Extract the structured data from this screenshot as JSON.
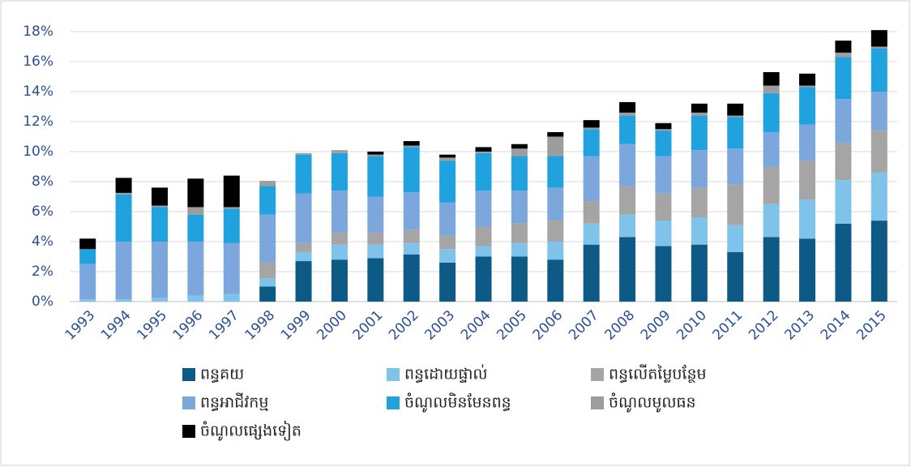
{
  "chart_data": {
    "type": "stacked_bar",
    "categories": [
      "1993",
      "1994",
      "1995",
      "1996",
      "1997",
      "1998",
      "1999",
      "2000",
      "2001",
      "2002",
      "2003",
      "2004",
      "2005",
      "2006",
      "2007",
      "2008",
      "2009",
      "2010",
      "2011",
      "2012",
      "2013",
      "2014",
      "2015"
    ],
    "series": [
      {
        "name": "ពន្ធគយ",
        "color": "#0d5a86",
        "values": [
          0,
          0,
          0,
          0,
          0,
          1.0,
          2.7,
          2.8,
          2.9,
          3.15,
          2.6,
          3.0,
          3.0,
          2.8,
          3.8,
          4.3,
          3.7,
          3.8,
          3.3,
          4.3,
          4.2,
          5.2,
          5.4
        ]
      },
      {
        "name": "ពន្ធដោយផ្ទាល់",
        "color": "#7fc3ea",
        "values": [
          0.15,
          0.15,
          0.25,
          0.4,
          0.5,
          0.55,
          0.6,
          1.0,
          0.9,
          0.75,
          0.9,
          0.7,
          0.9,
          1.2,
          1.4,
          1.5,
          1.7,
          1.8,
          1.8,
          2.2,
          2.6,
          2.9,
          3.2
        ]
      },
      {
        "name": "ពន្ធលើតម្លៃបន្ថែម",
        "color": "#a5a5a5",
        "values": [
          0,
          0,
          0,
          0,
          0,
          1.05,
          0.6,
          0.8,
          0.8,
          0.9,
          0.9,
          1.3,
          1.3,
          1.4,
          1.5,
          1.9,
          1.8,
          2.0,
          2.7,
          2.5,
          2.6,
          2.5,
          2.8
        ]
      },
      {
        "name": "ពន្ធអាជីវកម្ម",
        "color": "#7ba7dd",
        "values": [
          2.35,
          3.85,
          3.75,
          3.6,
          3.4,
          3.2,
          3.3,
          2.8,
          2.4,
          2.5,
          2.2,
          2.4,
          2.2,
          2.2,
          3.0,
          2.8,
          2.5,
          2.5,
          2.4,
          2.3,
          2.4,
          2.9,
          2.6
        ]
      },
      {
        "name": "ចំណូលមិនមែនពន្ធ",
        "color": "#1fa2de",
        "values": [
          1.0,
          3.15,
          2.3,
          1.8,
          2.3,
          1.9,
          2.6,
          2.5,
          2.7,
          3.0,
          2.8,
          2.5,
          2.3,
          2.1,
          1.8,
          1.9,
          1.7,
          2.3,
          2.1,
          2.6,
          2.5,
          2.8,
          2.9
        ]
      },
      {
        "name": "ចំណូលមូលធន",
        "color": "#9d9d9d",
        "values": [
          0,
          0.1,
          0.1,
          0.5,
          0.1,
          0.35,
          0.1,
          0.2,
          0.1,
          0.1,
          0.2,
          0.1,
          0.5,
          1.3,
          0.1,
          0.2,
          0.1,
          0.2,
          0.1,
          0.5,
          0.1,
          0.3,
          0.1
        ]
      },
      {
        "name": "ចំណូលផ្សេងទៀត",
        "color": "#000000",
        "values": [
          0.7,
          1.0,
          1.2,
          1.9,
          2.1,
          0,
          0,
          0,
          0.2,
          0.3,
          0.2,
          0.3,
          0.3,
          0.3,
          0.5,
          0.7,
          0.4,
          0.6,
          0.8,
          0.9,
          0.8,
          0.8,
          1.1
        ]
      }
    ],
    "ylim": [
      0,
      18
    ],
    "yticks": [
      {
        "value": 0,
        "label": "0%"
      },
      {
        "value": 2,
        "label": "2%"
      },
      {
        "value": 4,
        "label": "4%"
      },
      {
        "value": 6,
        "label": "6%"
      },
      {
        "value": 8,
        "label": "8%"
      },
      {
        "value": 10,
        "label": "10%"
      },
      {
        "value": 12,
        "label": "12%"
      },
      {
        "value": 14,
        "label": "14%"
      },
      {
        "value": 16,
        "label": "16%"
      },
      {
        "value": 18,
        "label": "18%"
      }
    ],
    "grid": true
  }
}
